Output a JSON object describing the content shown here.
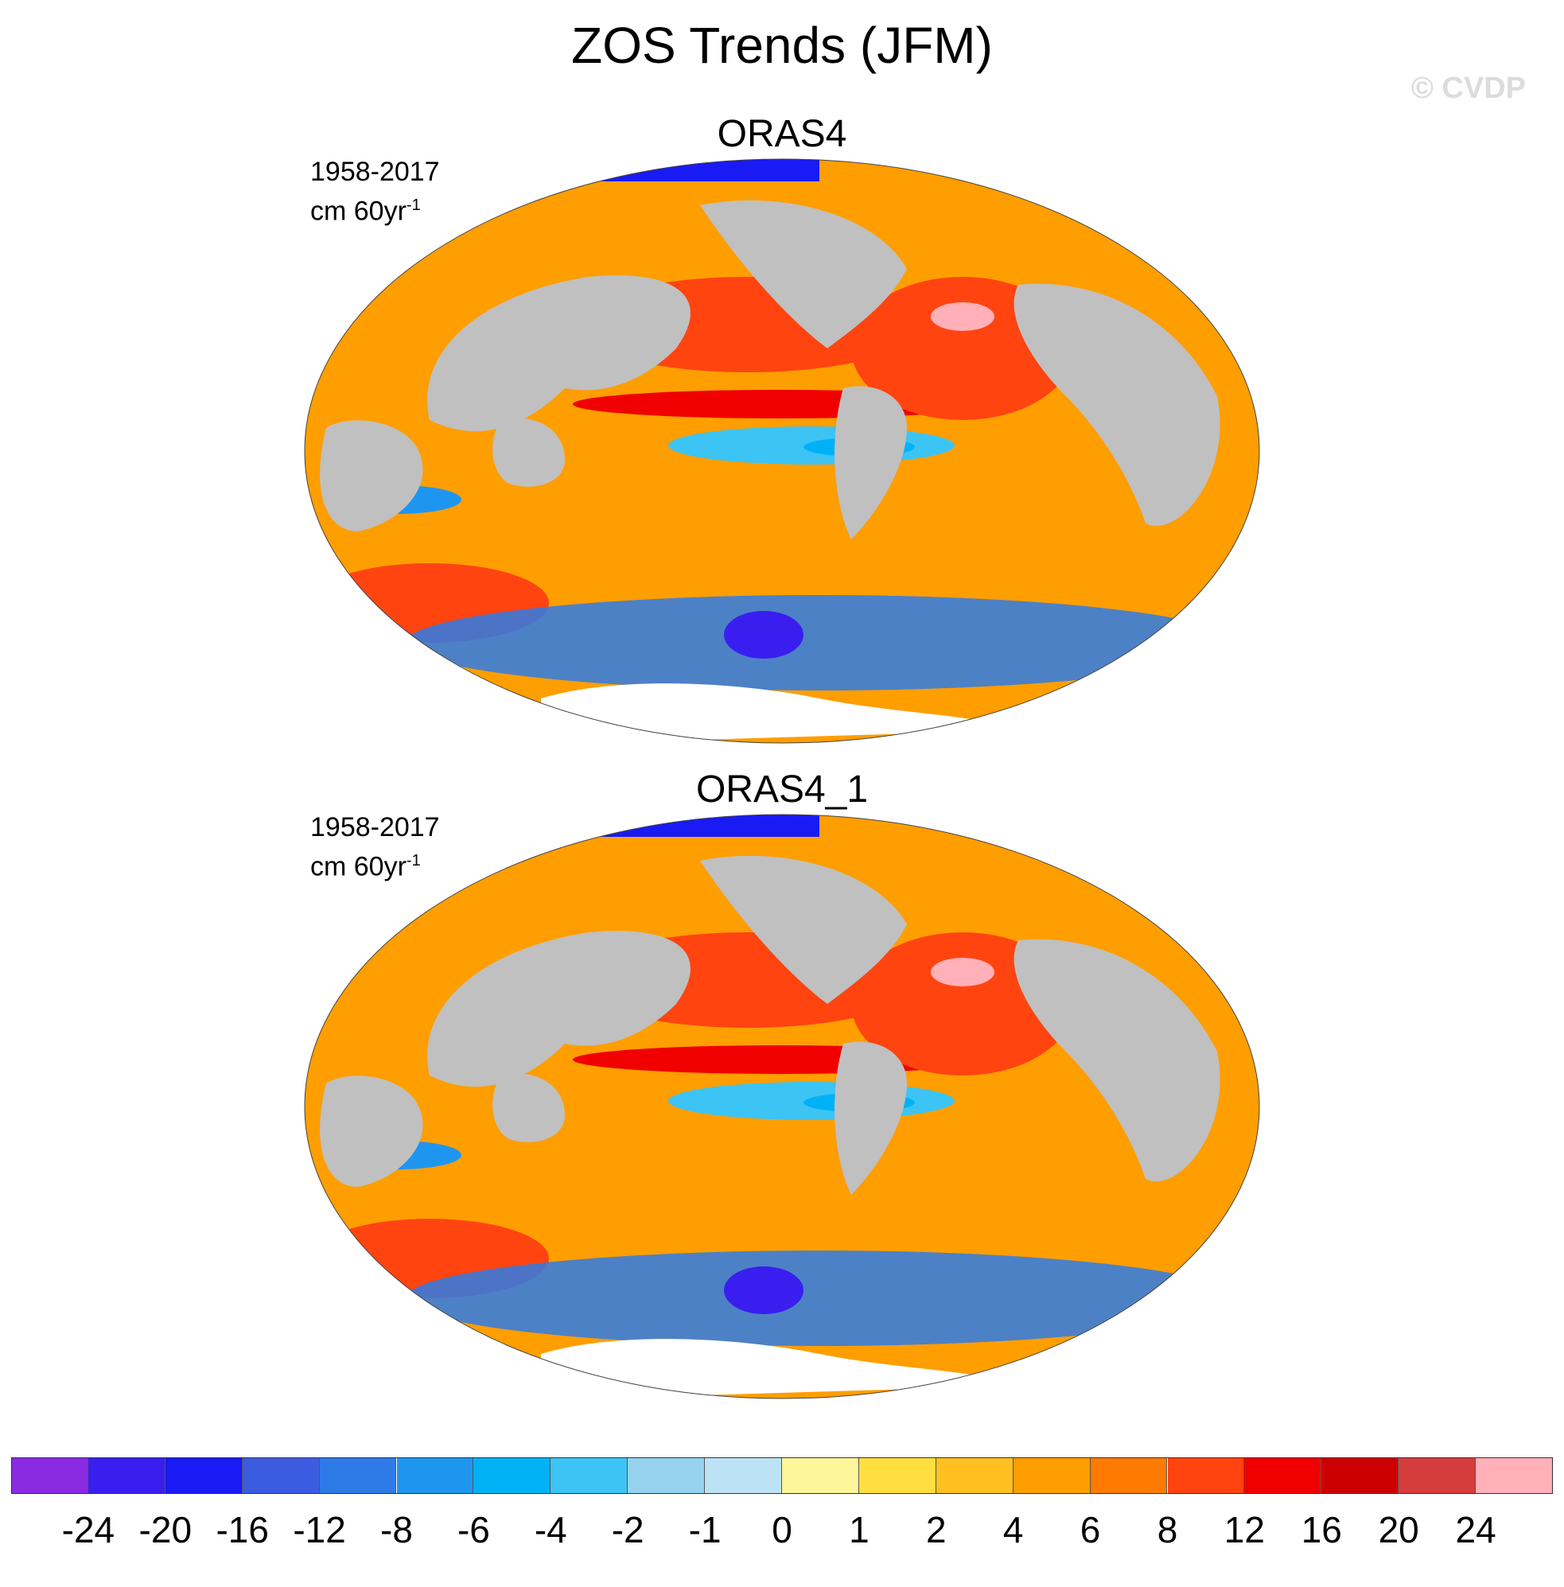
{
  "title": "ZOS Trends (JFM)",
  "watermark": "© CVDP",
  "panels": [
    {
      "title": "ORAS4",
      "period": "1958-2017",
      "units_base": "cm 60yr",
      "units_sup": "-1"
    },
    {
      "title": "ORAS4_1",
      "period": "1958-2017",
      "units_base": "cm 60yr",
      "units_sup": "-1"
    }
  ],
  "colorbar": {
    "labels": [
      "-24",
      "-20",
      "-16",
      "-12",
      "-8",
      "-6",
      "-4",
      "-2",
      "-1",
      "0",
      "1",
      "2",
      "4",
      "6",
      "8",
      "12",
      "16",
      "20",
      "24"
    ],
    "colors": [
      "#8a2be2",
      "#3a1ef0",
      "#1a1af5",
      "#3c5ce0",
      "#2e7be8",
      "#1e96f0",
      "#00b2f5",
      "#3cc4f5",
      "#96d2ee",
      "#bce3f5",
      "#fff59a",
      "#ffdf40",
      "#ffc020",
      "#ff9e00",
      "#ff7a00",
      "#ff4410",
      "#f00000",
      "#cc0000",
      "#d63c3c",
      "#ffb0b8"
    ]
  },
  "map_colors": {
    "land": "#c0c0c0",
    "ice": "#ffffff"
  }
}
